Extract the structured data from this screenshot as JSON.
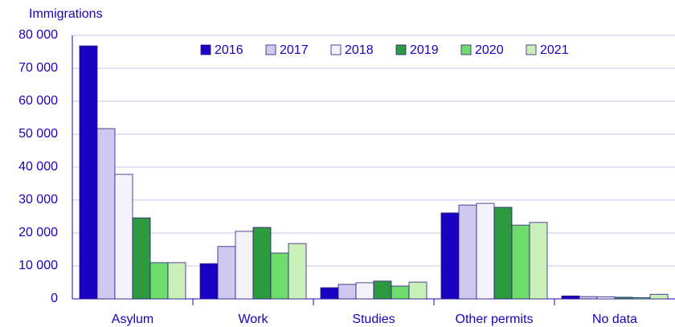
{
  "chart_data": {
    "type": "bar",
    "y_label": "Immigrations",
    "categories": [
      "Asylum",
      "Work",
      "Studies",
      "Other permits",
      "No data"
    ],
    "series": [
      {
        "name": "2016",
        "color": "#1a00c0",
        "values": [
          76800,
          10700,
          3400,
          26100,
          900
        ]
      },
      {
        "name": "2017",
        "color": "#cfc9f0",
        "values": [
          51700,
          15900,
          4400,
          28500,
          700
        ]
      },
      {
        "name": "2018",
        "color": "#f4f3fc",
        "values": [
          37800,
          20500,
          4900,
          29000,
          600
        ]
      },
      {
        "name": "2019",
        "color": "#2e9a40",
        "values": [
          24600,
          21700,
          5400,
          27800,
          500
        ]
      },
      {
        "name": "2020",
        "color": "#6ddc6a",
        "values": [
          11000,
          13900,
          3900,
          22400,
          400
        ]
      },
      {
        "name": "2021",
        "color": "#c9f0b8",
        "values": [
          11000,
          16800,
          5100,
          23200,
          1400
        ]
      }
    ],
    "ylim": [
      0,
      80000
    ],
    "yticks": [
      0,
      {
        "value": 10000,
        "label": "10 000"
      },
      {
        "value": 20000,
        "label": "20 000"
      },
      {
        "value": 30000,
        "label": "30 000"
      },
      {
        "value": 40000,
        "label": "40 000"
      },
      {
        "value": 50000,
        "label": "50 000"
      },
      {
        "value": 60000,
        "label": "60 000"
      },
      {
        "value": 70000,
        "label": "70 000"
      },
      {
        "value": 80000,
        "label": "80 000"
      }
    ],
    "grid": true,
    "legend": "top"
  }
}
